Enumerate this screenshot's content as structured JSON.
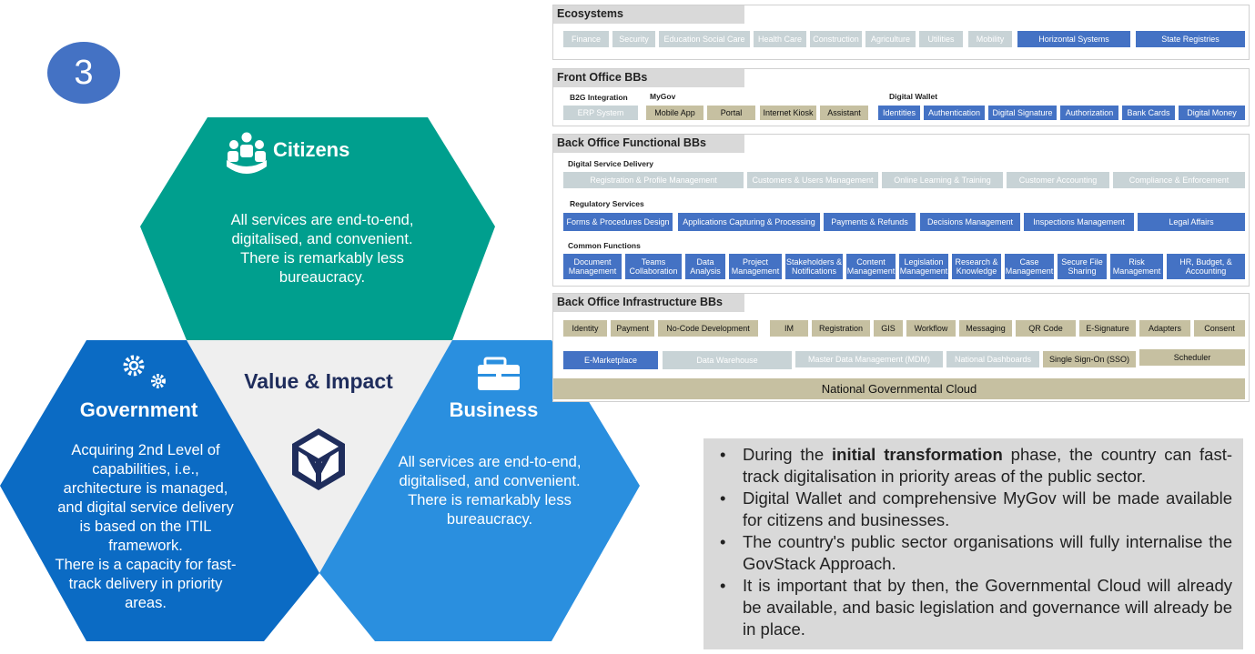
{
  "step_number": "3",
  "center_title": "Value & Impact",
  "citizens": {
    "label": "Citizens",
    "lines": [
      "All services are end-to-end,",
      "digitalised, and convenient.",
      "There is remarkably less",
      "bureaucracy."
    ]
  },
  "government": {
    "label": "Government",
    "lines": [
      "Acquiring 2nd Level of",
      "capabilities, i.e.,",
      "architecture is managed,",
      "and digital service delivery",
      "is based on the ITIL",
      "framework.",
      "There is a capacity for fast-",
      "track delivery in priority",
      "areas."
    ]
  },
  "business": {
    "label": "Business",
    "lines": [
      "All services are end-to-end,",
      "digitalised, and convenient.",
      "There is remarkably less",
      "bureaucracy."
    ]
  },
  "colors": {
    "teal": "#009f8e",
    "gov_blue": "#0b6bc4",
    "biz_blue": "#2a8fdf",
    "center_grey": "#efefef",
    "box_blue": "#4472c4",
    "box_grey": "#c8d3d6",
    "box_olive": "#c6c0a1"
  },
  "panels": {
    "ecosystems": {
      "title": "Ecosystems",
      "grey": [
        "Finance",
        "Security",
        "Education Social Care",
        "Health Care",
        "Construction",
        "Agriculture",
        "Utilities",
        "Mobility"
      ],
      "blue": [
        "Horizontal Systems",
        "State Registries"
      ]
    },
    "front_office": {
      "title": "Front Office BBs",
      "b2g_label": "B2G Integration",
      "mygov_label": "MyGov",
      "wallet_label": "Digital Wallet",
      "b2g": [
        "ERP System"
      ],
      "mygov": [
        "Mobile App",
        "Portal",
        "Internet Kiosk",
        "Assistant"
      ],
      "wallet": [
        "Identities",
        "Authentication",
        "Digital Signature",
        "Authorization",
        "Bank Cards",
        "Digital Money"
      ]
    },
    "back_office_functional": {
      "title": "Back Office Functional BBs",
      "dsd_label": "Digital Service Delivery",
      "reg_label": "Regulatory Services",
      "common_label": "Common Functions",
      "dsd": [
        "Registration & Profile Management",
        "Customers & Users Management",
        "Online Learning & Training",
        "Customer Accounting",
        "Compliance & Enforcement"
      ],
      "reg": [
        "Forms & Procedures Design",
        "Applications Capturing & Processing",
        "Payments & Refunds",
        "Decisions Management",
        "Inspections Management",
        "Legal Affairs"
      ],
      "common": [
        "Document Management",
        "Teams Collaboration",
        "Data Analysis",
        "Project Management",
        "Stakeholders & Notifications",
        "Content Management",
        "Legislation Management",
        "Research & Knowledge",
        "Case Management",
        "Secure File Sharing",
        "Risk Management",
        "HR, Budget, & Accounting"
      ]
    },
    "back_office_infra": {
      "title": "Back Office Infrastructure BBs",
      "row1": [
        "Identity",
        "Payment",
        "No-Code Development",
        "IM",
        "Registration",
        "GIS",
        "Workflow",
        "Messaging",
        "QR Code",
        "E-Signature",
        "Adapters",
        "Consent"
      ],
      "row2": [
        "E-Marketplace",
        "Data Warehouse",
        "Master Data Management (MDM)",
        "National Dashboards",
        "Single Sign-On (SSO)",
        "Scheduler"
      ],
      "cloud": "National Governmental Cloud"
    }
  },
  "bullets": [
    {
      "pre": "During the ",
      "bold": "initial transformation",
      "post": " phase, the country can fast-track digitalisation in priority areas of the public sector."
    },
    {
      "pre": "Digital Wallet and comprehensive MyGov will be made available for citizens and businesses.",
      "bold": "",
      "post": ""
    },
    {
      "pre": "The country's public sector organisations will fully internalise the GovStack Approach.",
      "bold": "",
      "post": ""
    },
    {
      "pre": "It is important that by then, the Governmental Cloud will already be available, and basic legislation and governance will already be in place.",
      "bold": "",
      "post": ""
    }
  ]
}
